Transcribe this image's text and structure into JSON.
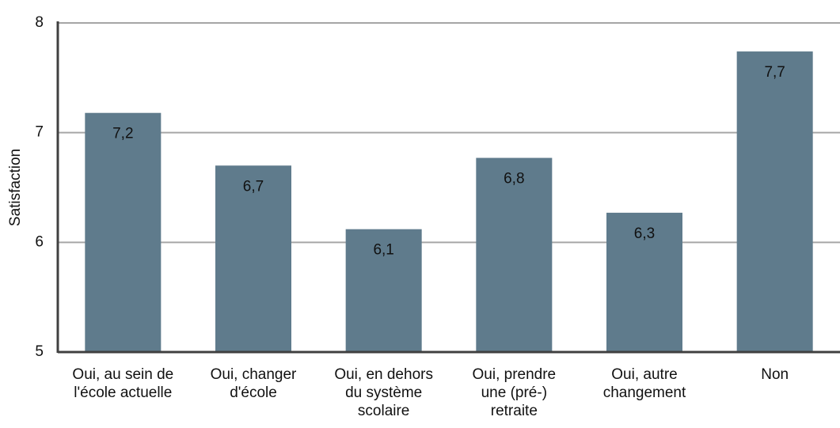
{
  "chart_data": {
    "type": "bar",
    "y_label": "Satisfaction",
    "categories": [
      "Oui, au sein de\nl'école actuelle",
      "Oui, changer\nd'école",
      "Oui, en dehors\ndu système\nscolaire",
      "Oui, prendre\nune (pré-)\nretraite",
      "Oui, autre\nchangement",
      "Non"
    ],
    "values": [
      7.18,
      6.7,
      6.12,
      6.77,
      6.27,
      7.74
    ],
    "value_labels": [
      "7,2",
      "6,7",
      "6,1",
      "6,8",
      "6,3",
      "7,7"
    ],
    "color": "#5f7b8c",
    "ylim": [
      5,
      8
    ],
    "yticks": [
      5,
      6,
      7,
      8
    ],
    "grid": true
  }
}
